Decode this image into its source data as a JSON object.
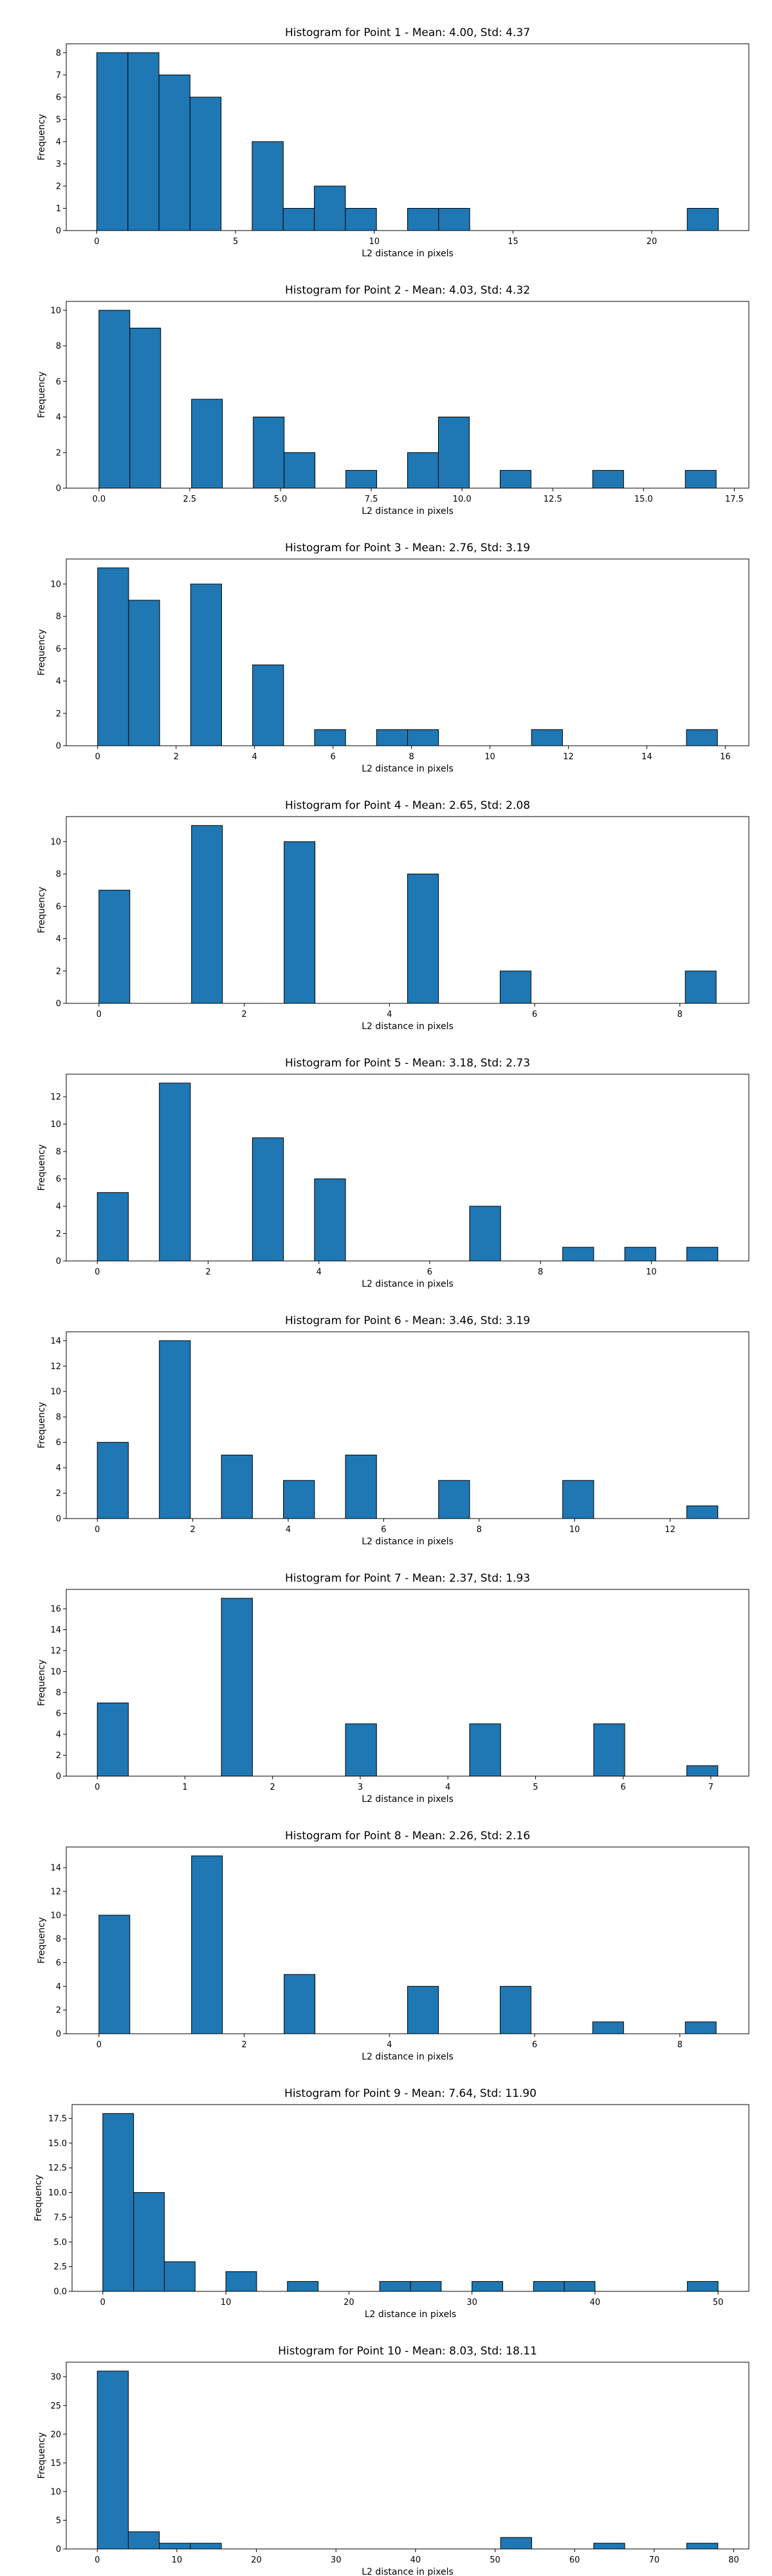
{
  "chart_data": [
    {
      "type": "bar",
      "title": "Histogram for Point 1 - Mean: 4.00, Std: 4.37",
      "xlabel": "L2 distance in pixels",
      "ylabel": "Frequency",
      "xlim": [
        -1.1,
        23.5
      ],
      "ylim": [
        0,
        8.4
      ],
      "xticks": [
        0,
        5,
        10,
        15,
        20
      ],
      "xtick_labels": [
        "0",
        "5",
        "10",
        "15",
        "20"
      ],
      "yticks": [
        0,
        1,
        2,
        3,
        4,
        5,
        6,
        7,
        8
      ],
      "ytick_labels": [
        "0",
        "1",
        "2",
        "3",
        "4",
        "5",
        "6",
        "7",
        "8"
      ],
      "bar_color": "#1f77b4",
      "bins": [
        {
          "start": 0.0,
          "end": 1.12,
          "count": 8
        },
        {
          "start": 1.12,
          "end": 2.24,
          "count": 8
        },
        {
          "start": 2.24,
          "end": 3.36,
          "count": 7
        },
        {
          "start": 3.36,
          "end": 4.48,
          "count": 6
        },
        {
          "start": 5.6,
          "end": 6.72,
          "count": 4
        },
        {
          "start": 6.72,
          "end": 7.84,
          "count": 1
        },
        {
          "start": 7.84,
          "end": 8.96,
          "count": 2
        },
        {
          "start": 8.96,
          "end": 10.08,
          "count": 1
        },
        {
          "start": 11.2,
          "end": 12.32,
          "count": 1
        },
        {
          "start": 12.32,
          "end": 13.44,
          "count": 1
        },
        {
          "start": 21.28,
          "end": 22.4,
          "count": 1
        }
      ]
    },
    {
      "type": "bar",
      "title": "Histogram for Point 2 - Mean: 4.03, Std: 4.32",
      "xlabel": "L2 distance in pixels",
      "ylabel": "Frequency",
      "xlim": [
        -0.9,
        17.9
      ],
      "ylim": [
        0,
        10.5
      ],
      "xticks": [
        0,
        2.5,
        5,
        7.5,
        10,
        12.5,
        15,
        17.5
      ],
      "xtick_labels": [
        "0.0",
        "2.5",
        "5.0",
        "7.5",
        "10.0",
        "12.5",
        "15.0",
        "17.5"
      ],
      "yticks": [
        0,
        2,
        4,
        6,
        8,
        10
      ],
      "ytick_labels": [
        "0",
        "2",
        "4",
        "6",
        "8",
        "10"
      ],
      "bar_color": "#1f77b4",
      "bins": [
        {
          "start": 0.0,
          "end": 0.85,
          "count": 10
        },
        {
          "start": 0.85,
          "end": 1.7,
          "count": 9
        },
        {
          "start": 2.55,
          "end": 3.4,
          "count": 5
        },
        {
          "start": 4.25,
          "end": 5.1,
          "count": 4
        },
        {
          "start": 5.1,
          "end": 5.95,
          "count": 2
        },
        {
          "start": 6.8,
          "end": 7.65,
          "count": 1
        },
        {
          "start": 8.5,
          "end": 9.35,
          "count": 2
        },
        {
          "start": 9.35,
          "end": 10.2,
          "count": 4
        },
        {
          "start": 11.05,
          "end": 11.9,
          "count": 1
        },
        {
          "start": 13.6,
          "end": 14.45,
          "count": 1
        },
        {
          "start": 16.15,
          "end": 17.0,
          "count": 1
        }
      ]
    },
    {
      "type": "bar",
      "title": "Histogram for Point 3 - Mean: 2.76, Std: 3.19",
      "xlabel": "L2 distance in pixels",
      "ylabel": "Frequency",
      "xlim": [
        -0.8,
        16.6
      ],
      "ylim": [
        0,
        11.55
      ],
      "xticks": [
        0,
        2,
        4,
        6,
        8,
        10,
        12,
        14,
        16
      ],
      "xtick_labels": [
        "0",
        "2",
        "4",
        "6",
        "8",
        "10",
        "12",
        "14",
        "16"
      ],
      "yticks": [
        0,
        2,
        4,
        6,
        8,
        10
      ],
      "ytick_labels": [
        "0",
        "2",
        "4",
        "6",
        "8",
        "10"
      ],
      "bar_color": "#1f77b4",
      "bins": [
        {
          "start": 0.0,
          "end": 0.79,
          "count": 11
        },
        {
          "start": 0.79,
          "end": 1.58,
          "count": 9
        },
        {
          "start": 2.37,
          "end": 3.16,
          "count": 10
        },
        {
          "start": 3.95,
          "end": 4.74,
          "count": 5
        },
        {
          "start": 5.53,
          "end": 6.32,
          "count": 1
        },
        {
          "start": 7.11,
          "end": 7.9,
          "count": 1
        },
        {
          "start": 7.9,
          "end": 8.69,
          "count": 1
        },
        {
          "start": 11.06,
          "end": 11.85,
          "count": 1
        },
        {
          "start": 15.01,
          "end": 15.8,
          "count": 1
        }
      ]
    },
    {
      "type": "bar",
      "title": "Histogram for Point 4 - Mean: 2.65, Std: 2.08",
      "xlabel": "L2 distance in pixels",
      "ylabel": "Frequency",
      "xlim": [
        -0.45,
        8.95
      ],
      "ylim": [
        0,
        11.55
      ],
      "xticks": [
        0,
        2,
        4,
        6,
        8
      ],
      "xtick_labels": [
        "0",
        "2",
        "4",
        "6",
        "8"
      ],
      "yticks": [
        0,
        2,
        4,
        6,
        8,
        10
      ],
      "ytick_labels": [
        "0",
        "2",
        "4",
        "6",
        "8",
        "10"
      ],
      "bar_color": "#1f77b4",
      "bins": [
        {
          "start": 0.0,
          "end": 0.425,
          "count": 7
        },
        {
          "start": 1.275,
          "end": 1.7,
          "count": 11
        },
        {
          "start": 2.55,
          "end": 2.975,
          "count": 10
        },
        {
          "start": 4.25,
          "end": 4.675,
          "count": 8
        },
        {
          "start": 5.525,
          "end": 5.95,
          "count": 2
        },
        {
          "start": 8.075,
          "end": 8.5,
          "count": 2
        }
      ]
    },
    {
      "type": "bar",
      "title": "Histogram for Point 5 - Mean: 3.18, Std: 2.73",
      "xlabel": "L2 distance in pixels",
      "ylabel": "Frequency",
      "xlim": [
        -0.56,
        11.76
      ],
      "ylim": [
        0,
        13.65
      ],
      "xticks": [
        0,
        2,
        4,
        6,
        8,
        10
      ],
      "xtick_labels": [
        "0",
        "2",
        "4",
        "6",
        "8",
        "10"
      ],
      "yticks": [
        0,
        2,
        4,
        6,
        8,
        10,
        12
      ],
      "ytick_labels": [
        "0",
        "2",
        "4",
        "6",
        "8",
        "10",
        "12"
      ],
      "bar_color": "#1f77b4",
      "bins": [
        {
          "start": 0.0,
          "end": 0.56,
          "count": 5
        },
        {
          "start": 1.12,
          "end": 1.68,
          "count": 13
        },
        {
          "start": 2.8,
          "end": 3.36,
          "count": 9
        },
        {
          "start": 3.92,
          "end": 4.48,
          "count": 6
        },
        {
          "start": 6.72,
          "end": 7.28,
          "count": 4
        },
        {
          "start": 8.4,
          "end": 8.96,
          "count": 1
        },
        {
          "start": 9.52,
          "end": 10.08,
          "count": 1
        },
        {
          "start": 10.64,
          "end": 11.2,
          "count": 1
        }
      ]
    },
    {
      "type": "bar",
      "title": "Histogram for Point 6 - Mean: 3.46, Std: 3.19",
      "xlabel": "L2 distance in pixels",
      "ylabel": "Frequency",
      "xlim": [
        -0.65,
        13.65
      ],
      "ylim": [
        0,
        14.7
      ],
      "xticks": [
        0,
        2,
        4,
        6,
        8,
        10,
        12
      ],
      "xtick_labels": [
        "0",
        "2",
        "4",
        "6",
        "8",
        "10",
        "12"
      ],
      "yticks": [
        0,
        2,
        4,
        6,
        8,
        10,
        12,
        14
      ],
      "ytick_labels": [
        "0",
        "2",
        "4",
        "6",
        "8",
        "10",
        "12",
        "14"
      ],
      "bar_color": "#1f77b4",
      "bins": [
        {
          "start": 0.0,
          "end": 0.65,
          "count": 6
        },
        {
          "start": 1.3,
          "end": 1.95,
          "count": 14
        },
        {
          "start": 2.6,
          "end": 3.25,
          "count": 5
        },
        {
          "start": 3.9,
          "end": 4.55,
          "count": 3
        },
        {
          "start": 5.2,
          "end": 5.85,
          "count": 5
        },
        {
          "start": 7.15,
          "end": 7.8,
          "count": 3
        },
        {
          "start": 9.75,
          "end": 10.4,
          "count": 3
        },
        {
          "start": 12.35,
          "end": 13.0,
          "count": 1
        }
      ]
    },
    {
      "type": "bar",
      "title": "Histogram for Point 7 - Mean: 2.37, Std: 1.93",
      "xlabel": "L2 distance in pixels",
      "ylabel": "Frequency",
      "xlim": [
        -0.354,
        7.434
      ],
      "ylim": [
        0,
        17.85
      ],
      "xticks": [
        0,
        1,
        2,
        3,
        4,
        5,
        6,
        7
      ],
      "xtick_labels": [
        "0",
        "1",
        "2",
        "3",
        "4",
        "5",
        "6",
        "7"
      ],
      "yticks": [
        0,
        2,
        4,
        6,
        8,
        10,
        12,
        14,
        16
      ],
      "ytick_labels": [
        "0",
        "2",
        "4",
        "6",
        "8",
        "10",
        "12",
        "14",
        "16"
      ],
      "bar_color": "#1f77b4",
      "bins": [
        {
          "start": 0.0,
          "end": 0.354,
          "count": 7
        },
        {
          "start": 1.416,
          "end": 1.77,
          "count": 17
        },
        {
          "start": 2.832,
          "end": 3.186,
          "count": 5
        },
        {
          "start": 4.248,
          "end": 4.602,
          "count": 5
        },
        {
          "start": 5.664,
          "end": 6.018,
          "count": 5
        },
        {
          "start": 6.726,
          "end": 7.08,
          "count": 1
        }
      ]
    },
    {
      "type": "bar",
      "title": "Histogram for Point 8 - Mean: 2.26, Std: 2.16",
      "xlabel": "L2 distance in pixels",
      "ylabel": "Frequency",
      "xlim": [
        -0.45,
        8.95
      ],
      "ylim": [
        0,
        15.75
      ],
      "xticks": [
        0,
        2,
        4,
        6,
        8
      ],
      "xtick_labels": [
        "0",
        "2",
        "4",
        "6",
        "8"
      ],
      "yticks": [
        0,
        2,
        4,
        6,
        8,
        10,
        12,
        14
      ],
      "ytick_labels": [
        "0",
        "2",
        "4",
        "6",
        "8",
        "10",
        "12",
        "14"
      ],
      "bar_color": "#1f77b4",
      "bins": [
        {
          "start": 0.0,
          "end": 0.425,
          "count": 10
        },
        {
          "start": 1.275,
          "end": 1.7,
          "count": 15
        },
        {
          "start": 2.55,
          "end": 2.975,
          "count": 5
        },
        {
          "start": 4.25,
          "end": 4.675,
          "count": 4
        },
        {
          "start": 5.525,
          "end": 5.95,
          "count": 4
        },
        {
          "start": 6.8,
          "end": 7.225,
          "count": 1
        },
        {
          "start": 8.075,
          "end": 8.5,
          "count": 1
        }
      ]
    },
    {
      "type": "bar",
      "title": "Histogram for Point 9 - Mean: 7.64, Std: 11.90",
      "xlabel": "L2 distance in pixels",
      "ylabel": "Frequency",
      "xlim": [
        -2.5,
        52.5
      ],
      "ylim": [
        0,
        18.9
      ],
      "xticks": [
        0,
        10,
        20,
        30,
        40,
        50
      ],
      "xtick_labels": [
        "0",
        "10",
        "20",
        "30",
        "40",
        "50"
      ],
      "yticks": [
        0,
        2.5,
        5,
        7.5,
        10,
        12.5,
        15,
        17.5
      ],
      "ytick_labels": [
        "0.0",
        "2.5",
        "5.0",
        "7.5",
        "10.0",
        "12.5",
        "15.0",
        "17.5"
      ],
      "bar_color": "#1f77b4",
      "bins": [
        {
          "start": 0.0,
          "end": 2.5,
          "count": 18
        },
        {
          "start": 2.5,
          "end": 5.0,
          "count": 10
        },
        {
          "start": 5.0,
          "end": 7.5,
          "count": 3
        },
        {
          "start": 10.0,
          "end": 12.5,
          "count": 2
        },
        {
          "start": 15.0,
          "end": 17.5,
          "count": 1
        },
        {
          "start": 22.5,
          "end": 25.0,
          "count": 1
        },
        {
          "start": 25.0,
          "end": 27.5,
          "count": 1
        },
        {
          "start": 30.0,
          "end": 32.5,
          "count": 1
        },
        {
          "start": 35.0,
          "end": 37.5,
          "count": 1
        },
        {
          "start": 37.5,
          "end": 40.0,
          "count": 1
        },
        {
          "start": 47.5,
          "end": 50.0,
          "count": 1
        }
      ]
    },
    {
      "type": "bar",
      "title": "Histogram for Point 10 - Mean: 8.03, Std: 18.11",
      "xlabel": "L2 distance in pixels",
      "ylabel": "Frequency",
      "xlim": [
        -3.9,
        81.9
      ],
      "ylim": [
        0,
        32.55
      ],
      "xticks": [
        0,
        10,
        20,
        30,
        40,
        50,
        60,
        70,
        80
      ],
      "xtick_labels": [
        "0",
        "10",
        "20",
        "30",
        "40",
        "50",
        "60",
        "70",
        "80"
      ],
      "yticks": [
        0,
        5,
        10,
        15,
        20,
        25,
        30
      ],
      "ytick_labels": [
        "0",
        "5",
        "10",
        "15",
        "20",
        "25",
        "30"
      ],
      "bar_color": "#1f77b4",
      "bins": [
        {
          "start": 0.0,
          "end": 3.9,
          "count": 31
        },
        {
          "start": 3.9,
          "end": 7.8,
          "count": 3
        },
        {
          "start": 7.8,
          "end": 11.7,
          "count": 1
        },
        {
          "start": 11.7,
          "end": 15.6,
          "count": 1
        },
        {
          "start": 50.7,
          "end": 54.6,
          "count": 2
        },
        {
          "start": 62.4,
          "end": 66.3,
          "count": 1
        },
        {
          "start": 74.1,
          "end": 78.0,
          "count": 1
        }
      ]
    }
  ]
}
